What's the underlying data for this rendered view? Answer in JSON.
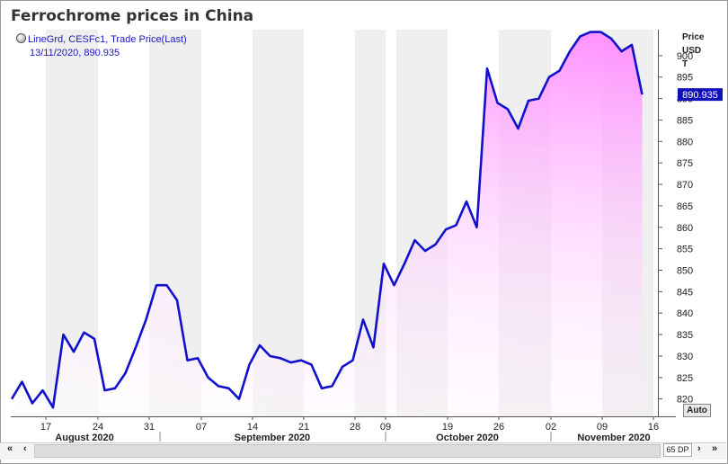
{
  "title": "Ferrochrome prices in China",
  "legend": {
    "line1": "LineGrd, CESFc1, Trade Price(Last)",
    "line2": "13/11/2020, 890.935"
  },
  "yaxis_unit": [
    "Price",
    "USD",
    "T"
  ],
  "current_value_label": "890.935",
  "auto_label": "Auto",
  "zoom_label": "65 DP",
  "nav": {
    "first": "«",
    "prev": "‹",
    "next": "›",
    "last": "»"
  },
  "colors": {
    "line": "#1111cc",
    "fill_top": "#ff88ff",
    "band": "#efefef",
    "badge": "#1111bb"
  },
  "chart_data": {
    "type": "area",
    "ylim": [
      817,
      905
    ],
    "yticks": [
      820,
      825,
      830,
      835,
      840,
      845,
      850,
      855,
      860,
      865,
      870,
      875,
      880,
      885,
      890,
      895,
      900
    ],
    "x_tick_labels": [
      "17",
      "24",
      "31",
      "07",
      "14",
      "21",
      "28",
      "09",
      "19",
      "26",
      "02",
      "09",
      "16"
    ],
    "months": [
      "August 2020",
      "September 2020",
      "October 2020",
      "November 2020"
    ],
    "series": [
      {
        "values": [
          820,
          824,
          819,
          822,
          818,
          835,
          831,
          835.5,
          834,
          822,
          822.5,
          826,
          832,
          838.5,
          846.5,
          846.5,
          843,
          829,
          829.5,
          825,
          823,
          822.5,
          820,
          828,
          832.5,
          830,
          829.5,
          828.5,
          829,
          828,
          822.5,
          823,
          827.5,
          829,
          838.5,
          832,
          851.5,
          846.5,
          851.5,
          857,
          854.5,
          856,
          859.5,
          860.5,
          866,
          860,
          897,
          889,
          887.5,
          883,
          889.5,
          890,
          895,
          896.5,
          901,
          904.5,
          905.5,
          905.5,
          904,
          901,
          902.5,
          890.935
        ]
      }
    ]
  }
}
